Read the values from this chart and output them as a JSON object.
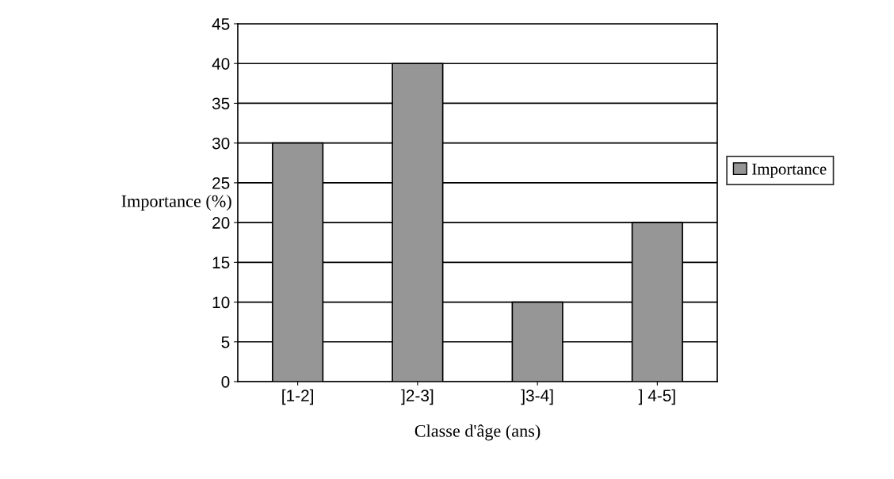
{
  "chart_data": {
    "type": "bar",
    "xlabel": "Classe d'âge (ans)",
    "ylabel": "Importance (%)",
    "categories": [
      "[1-2]",
      "]2-3]",
      "]3-4]",
      "] 4-5]"
    ],
    "series": [
      {
        "name": "Importance",
        "color": "#969696",
        "values": [
          30,
          40,
          10,
          20
        ]
      }
    ],
    "ylim": [
      0,
      45
    ],
    "yticks": [
      0,
      5,
      10,
      15,
      20,
      25,
      30,
      35,
      40,
      45
    ],
    "grid": "y",
    "legend": "right"
  }
}
